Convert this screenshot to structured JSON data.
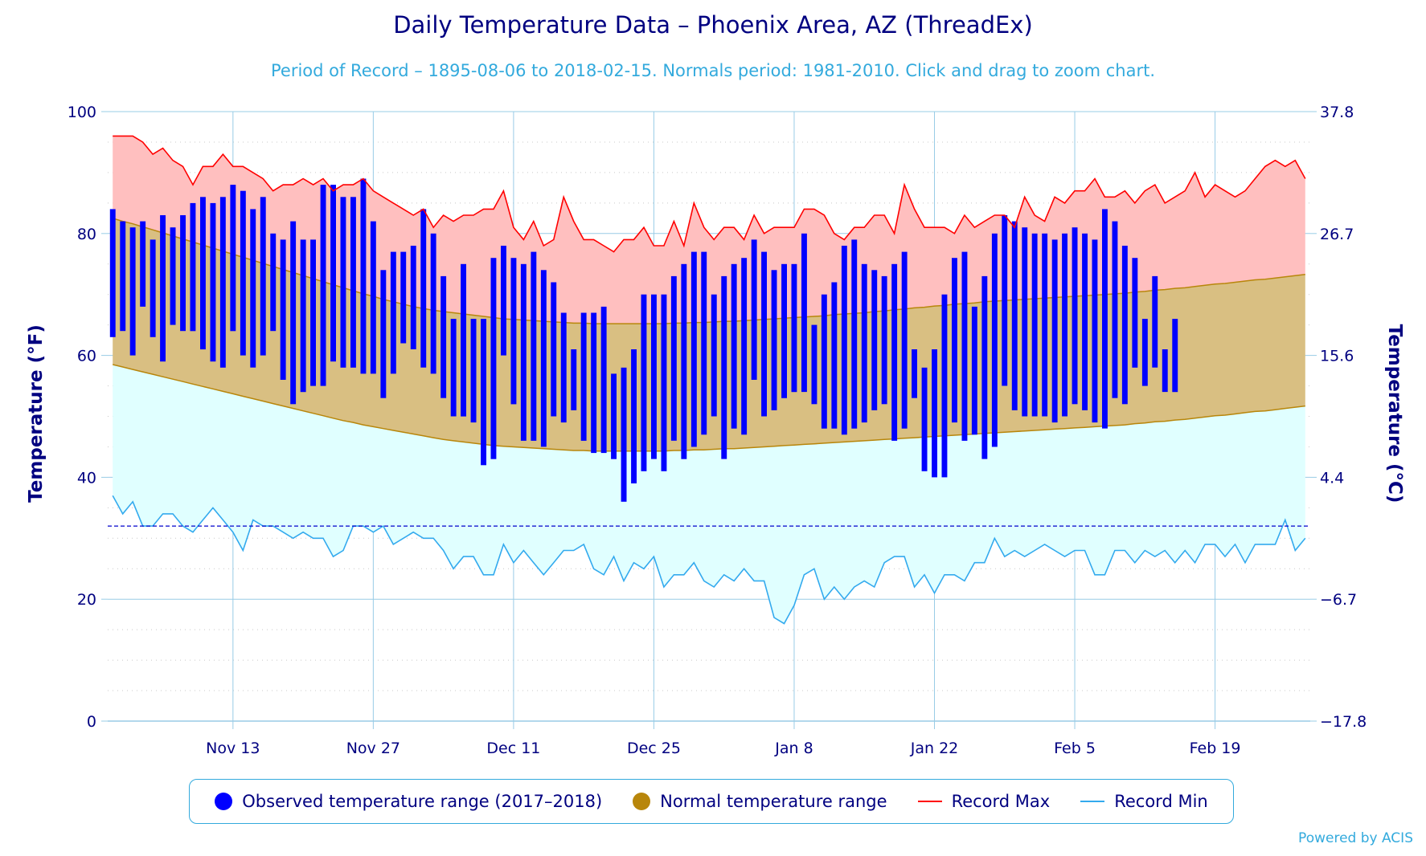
{
  "title": "Daily Temperature Data – Phoenix Area, AZ (ThreadEx)",
  "subtitle": "Period of Record – 1895-08-06 to 2018-02-15. Normals period: 1981-2010. Click and drag to zoom chart.",
  "credit": "Powered by ACIS",
  "colors": {
    "observed": "#0000ff",
    "normal_fill": "#d9bf82",
    "normal_line": "#b8860b",
    "record_max_fill": "#ffbfbf",
    "record_max_line": "#ff0000",
    "record_min_fill": "#e0ffff",
    "record_min_line": "#33aaee",
    "freezing_line": "#0000cc",
    "grid": "#99cce6",
    "axis_text": "#000080"
  },
  "legend": {
    "observed": "Observed temperature range (2017–2018)",
    "normal": "Normal temperature range",
    "record_max": "Record Max",
    "record_min": "Record Min"
  },
  "chart_data": {
    "type": "area",
    "title": "Daily Temperature Data – Phoenix Area, AZ (ThreadEx)",
    "ylabel": "Temperature (°F)",
    "ylabel_right": "Temperature (°C)",
    "ylim": [
      0,
      100
    ],
    "y_ticks": [
      0,
      20,
      40,
      60,
      80,
      100
    ],
    "y_ticks_right": [
      "−17.8",
      "−6.7",
      "4.4",
      "15.6",
      "26.7",
      "37.8"
    ],
    "x_ticks": [
      "Nov 13",
      "Nov 27",
      "Dec 11",
      "Dec 25",
      "Jan 8",
      "Jan 22",
      "Feb 5",
      "Feb 19"
    ],
    "x_start": "Nov 1",
    "x_end": "Feb 28",
    "freezing_line": 32,
    "grid": true,
    "legend_position": "bottom",
    "series": [
      {
        "name": "Record Max",
        "values": [
          96,
          96,
          96,
          95,
          93,
          94,
          92,
          91,
          88,
          91,
          91,
          93,
          91,
          91,
          90,
          89,
          87,
          88,
          88,
          89,
          88,
          89,
          87,
          88,
          88,
          89,
          87,
          86,
          85,
          84,
          83,
          84,
          81,
          83,
          82,
          83,
          83,
          84,
          84,
          87,
          81,
          79,
          82,
          78,
          79,
          86,
          82,
          79,
          79,
          78,
          77,
          79,
          79,
          81,
          78,
          78,
          82,
          78,
          85,
          81,
          79,
          81,
          81,
          79,
          83,
          80,
          81,
          81,
          81,
          84,
          84,
          83,
          80,
          79,
          81,
          81,
          83,
          83,
          80,
          88,
          84,
          81,
          81,
          81,
          80,
          83,
          81,
          82,
          83,
          83,
          81,
          86,
          83,
          82,
          86,
          85,
          87,
          87,
          89,
          86,
          86,
          87,
          85,
          87,
          88,
          85,
          86,
          87,
          90,
          86,
          88,
          87,
          86,
          87,
          89,
          91,
          92,
          91,
          92,
          89
        ]
      },
      {
        "name": "Record Min",
        "values": [
          37,
          34,
          36,
          32,
          32,
          34,
          34,
          32,
          31,
          33,
          35,
          33,
          31,
          28,
          33,
          32,
          32,
          31,
          30,
          31,
          30,
          30,
          27,
          28,
          32,
          32,
          31,
          32,
          29,
          30,
          31,
          30,
          30,
          28,
          25,
          27,
          27,
          24,
          24,
          29,
          26,
          28,
          26,
          24,
          26,
          28,
          28,
          29,
          25,
          24,
          27,
          23,
          26,
          25,
          27,
          22,
          24,
          24,
          26,
          23,
          22,
          24,
          23,
          25,
          23,
          23,
          17,
          16,
          19,
          24,
          25,
          20,
          22,
          20,
          22,
          23,
          22,
          26,
          27,
          27,
          22,
          24,
          21,
          24,
          24,
          23,
          26,
          26,
          30,
          27,
          28,
          27,
          28,
          29,
          28,
          27,
          28,
          28,
          24,
          24,
          28,
          28,
          26,
          28,
          27,
          28,
          26,
          28,
          26,
          29,
          29,
          27,
          29,
          26,
          29,
          29,
          29,
          33,
          28,
          30
        ]
      },
      {
        "name": "Normal Max",
        "values": [
          82.5,
          82.0,
          81.6,
          81.1,
          80.6,
          80.1,
          79.6,
          79.1,
          78.6,
          78.1,
          77.6,
          77.1,
          76.6,
          76.1,
          75.6,
          75.1,
          74.6,
          74.1,
          73.6,
          73.1,
          72.6,
          72.1,
          71.6,
          71.1,
          70.6,
          70.1,
          69.7,
          69.2,
          68.8,
          68.4,
          68.0,
          67.7,
          67.4,
          67.2,
          67.0,
          66.8,
          66.6,
          66.4,
          66.2,
          66.0,
          65.9,
          65.8,
          65.7,
          65.6,
          65.5,
          65.4,
          65.3,
          65.3,
          65.2,
          65.2,
          65.2,
          65.2,
          65.2,
          65.2,
          65.2,
          65.2,
          65.3,
          65.3,
          65.4,
          65.4,
          65.5,
          65.6,
          65.6,
          65.7,
          65.8,
          65.9,
          66.0,
          66.1,
          66.2,
          66.3,
          66.4,
          66.5,
          66.7,
          66.8,
          66.9,
          67.0,
          67.2,
          67.3,
          67.5,
          67.6,
          67.8,
          67.9,
          68.1,
          68.2,
          68.4,
          68.5,
          68.6,
          68.8,
          68.9,
          69.0,
          69.1,
          69.2,
          69.3,
          69.4,
          69.5,
          69.6,
          69.7,
          69.8,
          69.9,
          70.0,
          70.1,
          70.2,
          70.4,
          70.5,
          70.7,
          70.8,
          71.0,
          71.1,
          71.3,
          71.5,
          71.7,
          71.8,
          72.0,
          72.2,
          72.4,
          72.5,
          72.7,
          72.9,
          73.1,
          73.3
        ]
      },
      {
        "name": "Normal Min",
        "values": [
          58.5,
          58.1,
          57.7,
          57.3,
          56.9,
          56.5,
          56.1,
          55.7,
          55.3,
          54.9,
          54.5,
          54.1,
          53.7,
          53.3,
          52.9,
          52.5,
          52.1,
          51.7,
          51.3,
          50.9,
          50.5,
          50.1,
          49.7,
          49.3,
          49.0,
          48.6,
          48.3,
          48.0,
          47.7,
          47.4,
          47.1,
          46.8,
          46.5,
          46.2,
          46.0,
          45.8,
          45.6,
          45.4,
          45.2,
          45.1,
          45.0,
          44.9,
          44.8,
          44.7,
          44.6,
          44.5,
          44.4,
          44.4,
          44.3,
          44.3,
          44.3,
          44.3,
          44.3,
          44.3,
          44.3,
          44.3,
          44.4,
          44.4,
          44.5,
          44.5,
          44.6,
          44.7,
          44.7,
          44.8,
          44.9,
          45.0,
          45.1,
          45.2,
          45.3,
          45.4,
          45.5,
          45.6,
          45.7,
          45.8,
          45.9,
          46.0,
          46.1,
          46.2,
          46.3,
          46.4,
          46.5,
          46.6,
          46.7,
          46.8,
          46.9,
          47.0,
          47.1,
          47.2,
          47.3,
          47.4,
          47.5,
          47.6,
          47.7,
          47.8,
          47.9,
          48.0,
          48.1,
          48.2,
          48.3,
          48.4,
          48.5,
          48.6,
          48.8,
          48.9,
          49.1,
          49.2,
          49.4,
          49.5,
          49.7,
          49.9,
          50.1,
          50.2,
          50.4,
          50.6,
          50.8,
          50.9,
          51.1,
          51.3,
          51.5,
          51.7
        ]
      },
      {
        "name": "Observed temperature range (2017–2018)",
        "ranges": [
          [
            63,
            84
          ],
          [
            64,
            82
          ],
          [
            60,
            81
          ],
          [
            68,
            82
          ],
          [
            63,
            79
          ],
          [
            59,
            83
          ],
          [
            65,
            81
          ],
          [
            64,
            83
          ],
          [
            64,
            85
          ],
          [
            61,
            86
          ],
          [
            59,
            85
          ],
          [
            58,
            86
          ],
          [
            64,
            88
          ],
          [
            60,
            87
          ],
          [
            58,
            84
          ],
          [
            60,
            86
          ],
          [
            64,
            80
          ],
          [
            56,
            79
          ],
          [
            52,
            82
          ],
          [
            54,
            79
          ],
          [
            55,
            79
          ],
          [
            55,
            88
          ],
          [
            59,
            88
          ],
          [
            58,
            86
          ],
          [
            58,
            86
          ],
          [
            57,
            89
          ],
          [
            57,
            82
          ],
          [
            53,
            74
          ],
          [
            57,
            77
          ],
          [
            62,
            77
          ],
          [
            61,
            78
          ],
          [
            58,
            84
          ],
          [
            57,
            80
          ],
          [
            53,
            73
          ],
          [
            50,
            66
          ],
          [
            50,
            75
          ],
          [
            49,
            66
          ],
          [
            42,
            66
          ],
          [
            43,
            76
          ],
          [
            60,
            78
          ],
          [
            52,
            76
          ],
          [
            46,
            75
          ],
          [
            46,
            77
          ],
          [
            45,
            74
          ],
          [
            50,
            72
          ],
          [
            49,
            67
          ],
          [
            51,
            61
          ],
          [
            46,
            67
          ],
          [
            44,
            67
          ],
          [
            44,
            68
          ],
          [
            43,
            57
          ],
          [
            36,
            58
          ],
          [
            39,
            61
          ],
          [
            41,
            70
          ],
          [
            43,
            70
          ],
          [
            41,
            70
          ],
          [
            46,
            73
          ],
          [
            43,
            75
          ],
          [
            45,
            77
          ],
          [
            47,
            77
          ],
          [
            50,
            70
          ],
          [
            43,
            73
          ],
          [
            48,
            75
          ],
          [
            47,
            76
          ],
          [
            56,
            79
          ],
          [
            50,
            77
          ],
          [
            51,
            74
          ],
          [
            53,
            75
          ],
          [
            54,
            75
          ],
          [
            54,
            80
          ],
          [
            52,
            65
          ],
          [
            48,
            70
          ],
          [
            48,
            72
          ],
          [
            47,
            78
          ],
          [
            48,
            79
          ],
          [
            49,
            75
          ],
          [
            51,
            74
          ],
          [
            52,
            73
          ],
          [
            46,
            75
          ],
          [
            48,
            77
          ],
          [
            53,
            61
          ],
          [
            41,
            58
          ],
          [
            40,
            61
          ],
          [
            40,
            70
          ],
          [
            49,
            76
          ],
          [
            46,
            77
          ],
          [
            47,
            68
          ],
          [
            43,
            73
          ],
          [
            45,
            80
          ],
          [
            55,
            83
          ],
          [
            51,
            82
          ],
          [
            50,
            81
          ],
          [
            50,
            80
          ],
          [
            50,
            80
          ],
          [
            49,
            79
          ],
          [
            50,
            80
          ],
          [
            52,
            81
          ],
          [
            51,
            80
          ],
          [
            49,
            79
          ],
          [
            48,
            84
          ],
          [
            53,
            82
          ],
          [
            52,
            78
          ],
          [
            58,
            76
          ],
          [
            55,
            66
          ],
          [
            58,
            73
          ],
          [
            54,
            61
          ],
          [
            54,
            66
          ]
        ]
      }
    ]
  }
}
